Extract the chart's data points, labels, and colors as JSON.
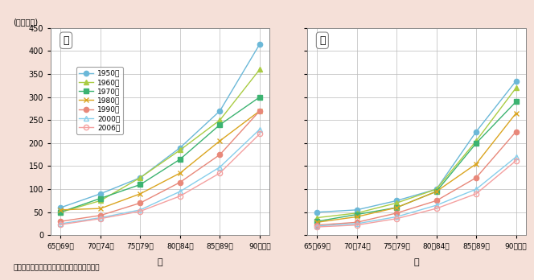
{
  "title_y": "(人口千対)",
  "xlabel_male": "男",
  "xlabel_female": "女",
  "caption": "資料：厚生労働省「人口動態統計」より作成",
  "categories": [
    "65～69歳",
    "70～74歳",
    "75～79歳",
    "80～84歳",
    "85～89歳",
    "90歳以上"
  ],
  "ylim": [
    0,
    450
  ],
  "yticks": [
    0,
    50,
    100,
    150,
    200,
    250,
    300,
    350,
    400,
    450
  ],
  "years": [
    "1950年",
    "1960年",
    "1970年",
    "1980年",
    "1990年",
    "2000年",
    "2006年"
  ],
  "male_data": [
    [
      60,
      90,
      125,
      190,
      270,
      415
    ],
    [
      50,
      75,
      125,
      185,
      250,
      360
    ],
    [
      50,
      80,
      110,
      165,
      240,
      300
    ],
    [
      55,
      58,
      90,
      135,
      205,
      270
    ],
    [
      30,
      43,
      70,
      115,
      175,
      270
    ],
    [
      25,
      38,
      55,
      95,
      148,
      230
    ],
    [
      23,
      36,
      52,
      85,
      135,
      220
    ]
  ],
  "female_data": [
    [
      50,
      55,
      75,
      100,
      225,
      335
    ],
    [
      38,
      48,
      70,
      100,
      205,
      320
    ],
    [
      30,
      45,
      60,
      95,
      200,
      290
    ],
    [
      28,
      40,
      60,
      95,
      155,
      265
    ],
    [
      22,
      28,
      48,
      75,
      125,
      225
    ],
    [
      20,
      25,
      40,
      65,
      100,
      170
    ],
    [
      18,
      22,
      36,
      58,
      90,
      162
    ]
  ],
  "line_colors": [
    "#6BB8D8",
    "#AACC44",
    "#3CB371",
    "#DAA520",
    "#E8887A",
    "#87CEEB",
    "#F4A0A0"
  ],
  "markers": [
    "o",
    "^",
    "s",
    "x",
    "o",
    "^",
    "o"
  ],
  "filled": [
    true,
    true,
    true,
    true,
    true,
    false,
    false
  ],
  "background_color": "#F5E0D8",
  "plot_bg_color": "#FFFFFF"
}
